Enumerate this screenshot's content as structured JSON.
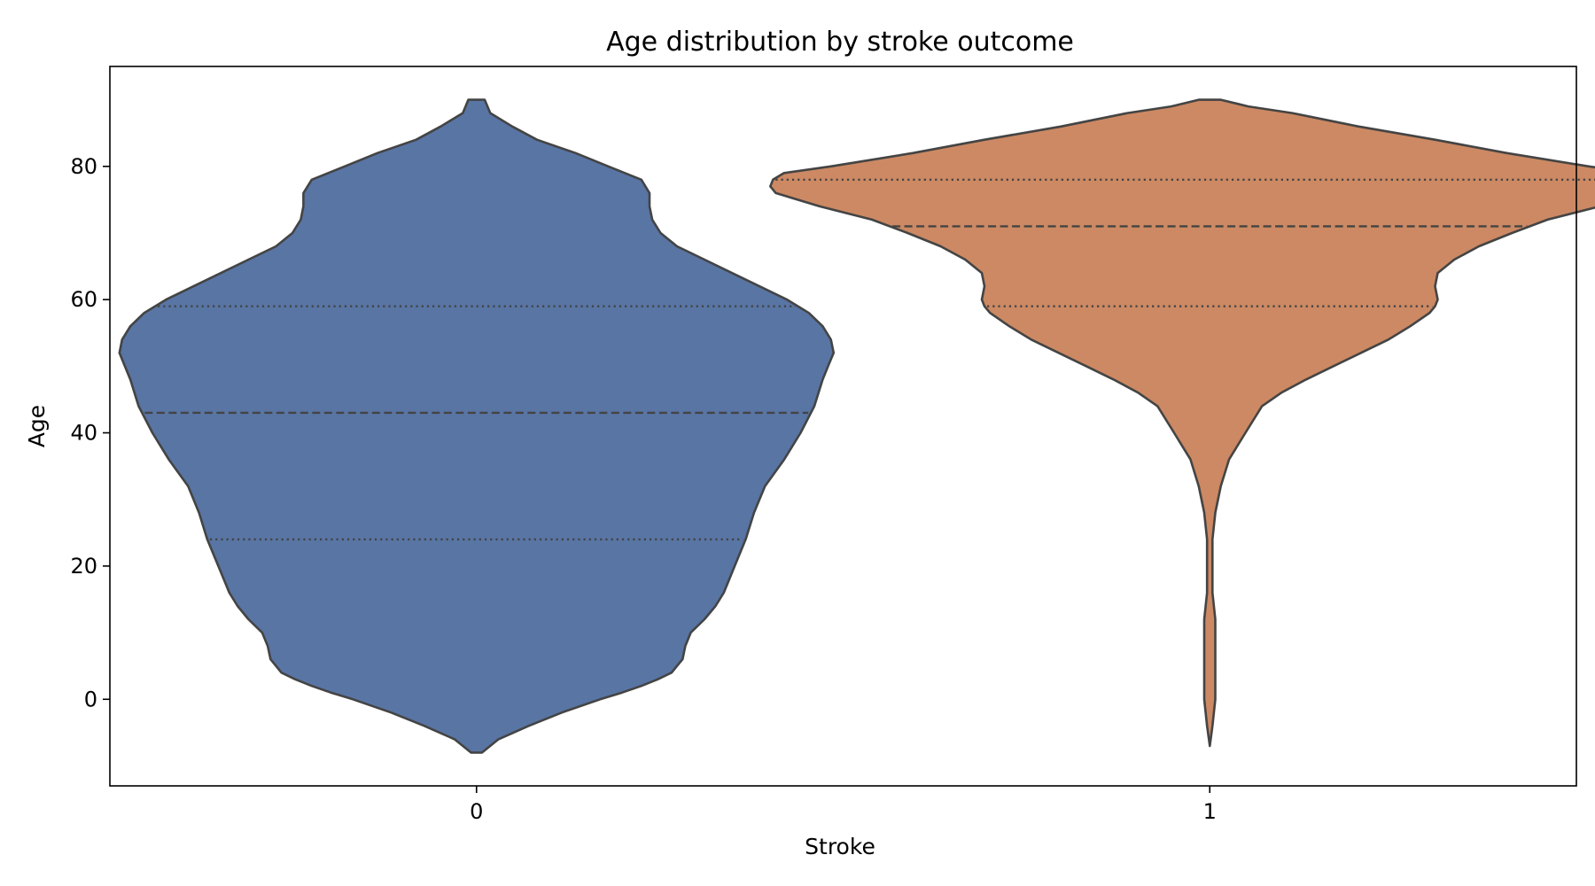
{
  "chart_data": {
    "type": "violin",
    "title": "Age distribution by stroke outcome",
    "xlabel": "Stroke",
    "ylabel": "Age",
    "categories": [
      "0",
      "1"
    ],
    "ylim": [
      -13,
      95
    ],
    "yticks": [
      0,
      20,
      40,
      60,
      80
    ],
    "grid": false,
    "legend": "none",
    "colors": {
      "0": "#5875a4",
      "1": "#cc8963",
      "outline": "#444444"
    },
    "series": [
      {
        "category": "0",
        "min": -8,
        "max": 90,
        "quartiles": {
          "q1": 24,
          "median": 43,
          "q3": 59
        },
        "density": [
          [
            -8,
            0.02
          ],
          [
            -6,
            0.08
          ],
          [
            -4,
            0.19
          ],
          [
            -2,
            0.31
          ],
          [
            0,
            0.45
          ],
          [
            1,
            0.53
          ],
          [
            2,
            0.6
          ],
          [
            3,
            0.66
          ],
          [
            4,
            0.71
          ],
          [
            5,
            0.73
          ],
          [
            6,
            0.75
          ],
          [
            8,
            0.76
          ],
          [
            10,
            0.78
          ],
          [
            12,
            0.83
          ],
          [
            14,
            0.87
          ],
          [
            16,
            0.9
          ],
          [
            18,
            0.92
          ],
          [
            20,
            0.94
          ],
          [
            24,
            0.98
          ],
          [
            28,
            1.01
          ],
          [
            32,
            1.05
          ],
          [
            36,
            1.12
          ],
          [
            40,
            1.18
          ],
          [
            44,
            1.23
          ],
          [
            48,
            1.26
          ],
          [
            50,
            1.28
          ],
          [
            52,
            1.3
          ],
          [
            54,
            1.29
          ],
          [
            56,
            1.26
          ],
          [
            58,
            1.21
          ],
          [
            60,
            1.13
          ],
          [
            62,
            1.03
          ],
          [
            64,
            0.93
          ],
          [
            66,
            0.83
          ],
          [
            68,
            0.73
          ],
          [
            70,
            0.67
          ],
          [
            72,
            0.64
          ],
          [
            74,
            0.63
          ],
          [
            76,
            0.63
          ],
          [
            78,
            0.6
          ],
          [
            80,
            0.48
          ],
          [
            82,
            0.36
          ],
          [
            84,
            0.22
          ],
          [
            86,
            0.13
          ],
          [
            88,
            0.05
          ],
          [
            90,
            0.03
          ]
        ]
      },
      {
        "category": "1",
        "min": -7,
        "max": 90,
        "quartiles": {
          "q1": 59,
          "median": 71,
          "q3": 78
        },
        "density": [
          [
            -7,
            0.0
          ],
          [
            -4,
            0.01
          ],
          [
            0,
            0.02
          ],
          [
            4,
            0.02
          ],
          [
            8,
            0.02
          ],
          [
            12,
            0.02
          ],
          [
            16,
            0.01
          ],
          [
            20,
            0.01
          ],
          [
            24,
            0.01
          ],
          [
            28,
            0.02
          ],
          [
            32,
            0.04
          ],
          [
            36,
            0.07
          ],
          [
            40,
            0.13
          ],
          [
            44,
            0.19
          ],
          [
            46,
            0.26
          ],
          [
            48,
            0.35
          ],
          [
            50,
            0.45
          ],
          [
            52,
            0.55
          ],
          [
            54,
            0.65
          ],
          [
            56,
            0.73
          ],
          [
            58,
            0.8
          ],
          [
            59,
            0.82
          ],
          [
            60,
            0.83
          ],
          [
            62,
            0.82
          ],
          [
            64,
            0.83
          ],
          [
            66,
            0.89
          ],
          [
            68,
            0.98
          ],
          [
            70,
            1.1
          ],
          [
            72,
            1.23
          ],
          [
            74,
            1.42
          ],
          [
            76,
            1.58
          ],
          [
            77,
            1.6
          ],
          [
            78,
            1.59
          ],
          [
            79,
            1.55
          ],
          [
            80,
            1.38
          ],
          [
            82,
            1.08
          ],
          [
            84,
            0.82
          ],
          [
            86,
            0.54
          ],
          [
            88,
            0.3
          ],
          [
            89,
            0.14
          ],
          [
            90,
            0.04
          ]
        ]
      }
    ]
  }
}
